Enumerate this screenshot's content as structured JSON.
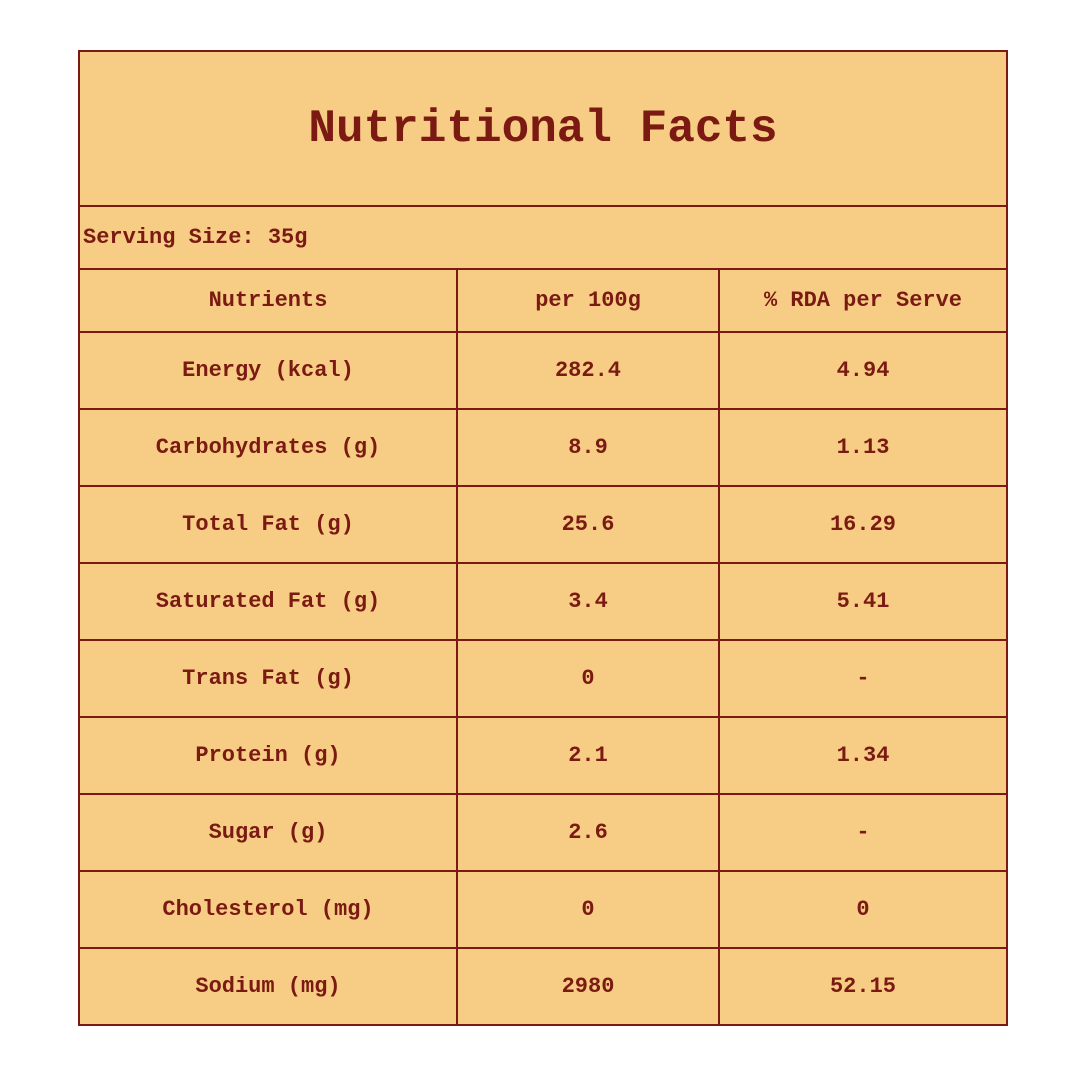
{
  "title": "Nutritional Facts",
  "serving_size": "Serving Size: 35g",
  "table": {
    "headers": [
      "Nutrients",
      "per 100g",
      "% RDA per Serve"
    ],
    "rows": [
      [
        "Energy (kcal)",
        "282.4",
        "4.94"
      ],
      [
        "Carbohydrates (g)",
        "8.9",
        "1.13"
      ],
      [
        "Total Fat (g)",
        "25.6",
        "16.29"
      ],
      [
        "Saturated Fat (g)",
        "3.4",
        "5.41"
      ],
      [
        "Trans Fat (g)",
        "0",
        "-"
      ],
      [
        "Protein (g)",
        "2.1",
        "1.34"
      ],
      [
        "Sugar (g)",
        "2.6",
        "-"
      ],
      [
        "Cholesterol (mg)",
        "0",
        "0"
      ],
      [
        "Sodium (mg)",
        "2980",
        "52.15"
      ]
    ]
  }
}
